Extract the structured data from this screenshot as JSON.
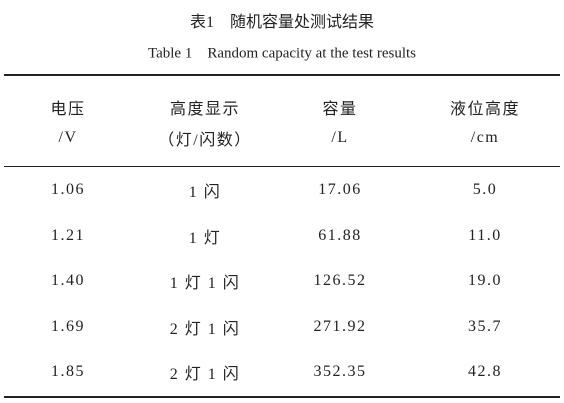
{
  "caption": {
    "label_zh": "表1",
    "title_zh": "随机容量处测试结果",
    "label_en": "Table 1",
    "title_en": "Random capacity at the test results"
  },
  "table": {
    "header": [
      [
        "电压",
        "/V"
      ],
      [
        "高度显示",
        "（灯/闪数）"
      ],
      [
        "容量",
        "/L"
      ],
      [
        "液位高度",
        "/cm"
      ]
    ],
    "rows": [
      [
        "1.06",
        "1 闪",
        "17.06",
        "5.0"
      ],
      [
        "1.21",
        "1 灯",
        "61.88",
        "11.0"
      ],
      [
        "1.40",
        "1 灯 1 闪",
        "126.52",
        "19.0"
      ],
      [
        "1.69",
        "2 灯 1 闪",
        "271.92",
        "35.7"
      ],
      [
        "1.85",
        "2 灯 1 闪",
        "352.35",
        "42.8"
      ]
    ]
  }
}
